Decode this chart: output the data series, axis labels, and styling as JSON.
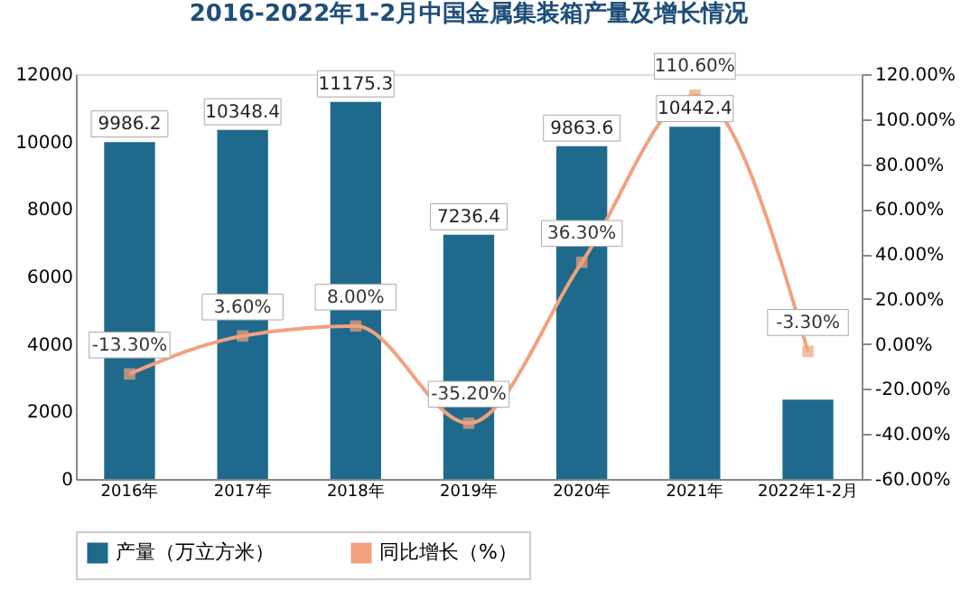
{
  "chart_data": {
    "type": "bar",
    "title": "2016-2022年1-2月中国金属集装箱产量及增长情况",
    "categories": [
      "2016年",
      "2017年",
      "2018年",
      "2019年",
      "2020年",
      "2021年",
      "2022年1-2月"
    ],
    "series": [
      {
        "name": "产量（万立方米）",
        "color": "#1f6a8c",
        "values": [
          9986.2,
          10348.4,
          11175.3,
          7236.4,
          9863.6,
          10442.4,
          2350
        ],
        "value_labels": [
          "9986.2",
          "10348.4",
          "11175.3",
          "7236.4",
          "9863.6",
          "10442.4",
          null
        ]
      },
      {
        "name": "同比增长（%）",
        "type": "line",
        "axis": "y2",
        "color": "#f0a27e",
        "marker": "square",
        "values": [
          -13.3,
          3.6,
          8.0,
          -35.2,
          36.3,
          110.6,
          -3.3
        ],
        "value_labels": [
          "-13.30%",
          "3.60%",
          "8.00%",
          "-35.20%",
          "36.30%",
          "110.60%",
          "-3.30%"
        ]
      }
    ],
    "ylim": [
      0,
      12000
    ],
    "yticks": [
      0,
      2000,
      4000,
      6000,
      8000,
      10000,
      12000
    ],
    "y2lim": [
      -60,
      120
    ],
    "y2ticks": [
      {
        "value": -60,
        "label": "-60.00%"
      },
      {
        "value": -40,
        "label": "-40.00%"
      },
      {
        "value": -20,
        "label": "-20.00%"
      },
      {
        "value": 0,
        "label": "0.00%"
      },
      {
        "value": 20,
        "label": "20.00%"
      },
      {
        "value": 40,
        "label": "40.00%"
      },
      {
        "value": 60,
        "label": "60.00%"
      },
      {
        "value": 80,
        "label": "80.00%"
      },
      {
        "value": 100,
        "label": "100.00%"
      },
      {
        "value": 120,
        "label": "120.00%"
      }
    ],
    "legend": "bottom",
    "grid": false
  }
}
